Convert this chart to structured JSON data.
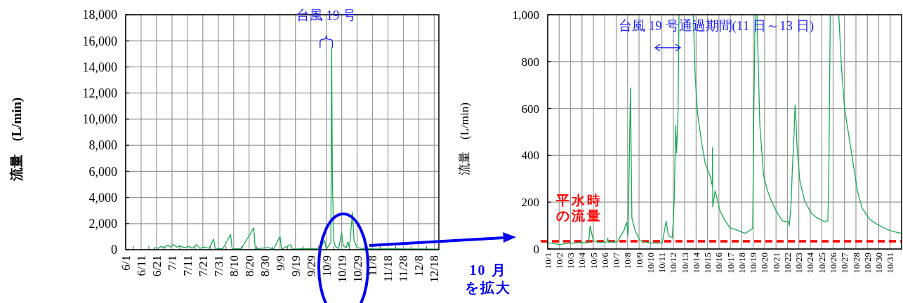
{
  "chart_data": [
    {
      "type": "line",
      "ylabel": "流量　(L/min)",
      "grid": true,
      "xlim": [
        "--06-01",
        "--12-21"
      ],
      "ylim": [
        0,
        18000
      ],
      "yticks": [
        0,
        {
          "value": 2000,
          "label": "2,000"
        },
        {
          "value": 4000,
          "label": "4,000"
        },
        {
          "value": 6000,
          "label": "6,000"
        },
        {
          "value": 8000,
          "label": "8,000"
        },
        {
          "value": 10000,
          "label": "10,000"
        },
        {
          "value": 12000,
          "label": "12,000"
        },
        {
          "value": 14000,
          "label": "14,000"
        },
        {
          "value": 16000,
          "label": "16,000"
        },
        {
          "value": 18000,
          "label": "18,000"
        }
      ],
      "xticks": [
        {
          "value": "--06-01",
          "label": "6/1"
        },
        {
          "value": "--06-06",
          "label": null
        },
        {
          "value": "--06-11",
          "label": "6/11"
        },
        {
          "value": "--06-16",
          "label": null
        },
        {
          "value": "--06-21",
          "label": "6/21"
        },
        {
          "value": "--06-26",
          "label": null
        },
        {
          "value": "--07-01",
          "label": "7/1"
        },
        {
          "value": "--07-06",
          "label": null
        },
        {
          "value": "--07-11",
          "label": "7/11"
        },
        {
          "value": "--07-16",
          "label": null
        },
        {
          "value": "--07-21",
          "label": "7/21"
        },
        {
          "value": "--07-26",
          "label": null
        },
        {
          "value": "--07-31",
          "label": "7/31"
        },
        {
          "value": "--08-05",
          "label": null
        },
        {
          "value": "--08-10",
          "label": "8/10"
        },
        {
          "value": "--08-15",
          "label": null
        },
        {
          "value": "--08-20",
          "label": "8/20"
        },
        {
          "value": "--08-25",
          "label": null
        },
        {
          "value": "--08-30",
          "label": "8/30"
        },
        {
          "value": "--09-04",
          "label": null
        },
        {
          "value": "--09-09",
          "label": "9/9"
        },
        {
          "value": "--09-14",
          "label": null
        },
        {
          "value": "--09-19",
          "label": "9/19"
        },
        {
          "value": "--09-24",
          "label": null
        },
        {
          "value": "--09-29",
          "label": "9/29"
        },
        {
          "value": "--10-04",
          "label": null
        },
        {
          "value": "--10-09",
          "label": "10/9"
        },
        {
          "value": "--10-14",
          "label": null
        },
        {
          "value": "--10-19",
          "label": "10/19"
        },
        {
          "value": "--10-24",
          "label": null
        },
        {
          "value": "--10-29",
          "label": "10/29"
        },
        {
          "value": "--11-03",
          "label": null
        },
        {
          "value": "--11-08",
          "label": "11/8"
        },
        {
          "value": "--11-13",
          "label": null
        },
        {
          "value": "--11-18",
          "label": "11/18"
        },
        {
          "value": "--11-23",
          "label": null
        },
        {
          "value": "--11-28",
          "label": "11/28"
        },
        {
          "value": "--12-03",
          "label": null
        },
        {
          "value": "--12-08",
          "label": "12/8"
        },
        {
          "value": "--12-13",
          "label": null
        },
        {
          "value": "--12-18",
          "label": "12/18"
        }
      ],
      "x": [
        "--06-19",
        "--06-20",
        "--06-22",
        "--06-24",
        "--06-26",
        "--06-28",
        "--06-30",
        "--07-02",
        "--07-04",
        "--07-06",
        "--07-09",
        "--07-12",
        "--07-14",
        "--07-17",
        "--07-19",
        "--07-22",
        "--07-25",
        "--07-28",
        "--07-29",
        "--08-03",
        "--08-08",
        "--08-09",
        "--08-15",
        "--08-23",
        "--08-24",
        "--09-01",
        "--09-05",
        "--09-09",
        "--09-10",
        "--09-16",
        "--09-17",
        "--09-25",
        "--10-05",
        "--10-08",
        "--10-09",
        "--10-12T00:00",
        "--10-12T12:00",
        "--10-13T00:00",
        "--10-14",
        "--10-15",
        "--10-17",
        "--10-19",
        "--10-20",
        "--10-22",
        "--10-23",
        "--10-24",
        "--10-26",
        "--10-27",
        "--10-29",
        "--11-02",
        "--11-10",
        "--11-20",
        "--12-01",
        "--12-10",
        "--12-21"
      ],
      "series": [
        {
          "color": "#1aaa55",
          "values": [
            0,
            150,
            100,
            250,
            150,
            350,
            200,
            400,
            200,
            300,
            150,
            250,
            100,
            400,
            100,
            200,
            100,
            800,
            100,
            80,
            1180,
            60,
            80,
            1670,
            60,
            150,
            60,
            1000,
            50,
            380,
            50,
            80,
            100,
            690,
            40,
            550,
            15500,
            5000,
            600,
            250,
            80,
            1300,
            300,
            150,
            600,
            150,
            2850,
            700,
            150,
            80,
            60,
            70,
            60,
            60,
            50
          ]
        }
      ],
      "annotations": [
        {
          "text": "台風 19 号",
          "x": "--10-09",
          "y": 16000
        },
        "10 月",
        "を拡大"
      ]
    },
    {
      "type": "line",
      "ylabel": "流量　(L/min)",
      "grid": true,
      "xlim": [
        "--10-01",
        "--11-01"
      ],
      "ylim": [
        0,
        1000
      ],
      "yticks": [
        0,
        200,
        400,
        600,
        800,
        {
          "value": 1000,
          "label": "1,000"
        }
      ],
      "xticks": [
        {
          "value": "--10-01",
          "label": "10/1"
        },
        {
          "value": "--10-02",
          "label": "10/2"
        },
        {
          "value": "--10-03",
          "label": "10/3"
        },
        {
          "value": "--10-04",
          "label": "10/4"
        },
        {
          "value": "--10-05",
          "label": "10/5"
        },
        {
          "value": "--10-06",
          "label": "10/6"
        },
        {
          "value": "--10-07",
          "label": "10/7"
        },
        {
          "value": "--10-08",
          "label": "10/8"
        },
        {
          "value": "--10-09",
          "label": "10/9"
        },
        {
          "value": "--10-10",
          "label": "10/10"
        },
        {
          "value": "--10-11",
          "label": "10/11"
        },
        {
          "value": "--10-12",
          "label": "10/12"
        },
        {
          "value": "--10-13",
          "label": "10/13"
        },
        {
          "value": "--10-14",
          "label": "10/14"
        },
        {
          "value": "--10-15",
          "label": "10/15"
        },
        {
          "value": "--10-16",
          "label": "10/16"
        },
        {
          "value": "--10-17",
          "label": "10/17"
        },
        {
          "value": "--10-18",
          "label": "10/18"
        },
        {
          "value": "--10-19",
          "label": "10/19"
        },
        {
          "value": "--10-20",
          "label": "10/20"
        },
        {
          "value": "--10-21",
          "label": "10/21"
        },
        {
          "value": "--10-22",
          "label": "10/22"
        },
        {
          "value": "--10-23",
          "label": "10/23"
        },
        {
          "value": "--10-24",
          "label": "10/24"
        },
        {
          "value": "--10-25",
          "label": "10/25"
        },
        {
          "value": "--10-26",
          "label": "10/26"
        },
        {
          "value": "--10-27",
          "label": "10/27"
        },
        {
          "value": "--10-28",
          "label": "10/28"
        },
        {
          "value": "--10-29",
          "label": "10/29"
        },
        {
          "value": "--10-30",
          "label": "10/30"
        },
        {
          "value": "--10-31",
          "label": "10/31"
        }
      ],
      "x": [
        "--10-01T00:00",
        "--10-02T00:00",
        "--10-03T00:00",
        "--10-04T00:00",
        "--10-04T14:00",
        "--10-04T17:00",
        "--10-05T00:00",
        "--10-05T12:00",
        "--10-06T05:00",
        "--10-06T06:00",
        "--10-06T08:00",
        "--10-07T02:00",
        "--10-07T16:00",
        "--10-07T22:00",
        "--10-08T01:00",
        "--10-08T06:00",
        "--10-08T09:00",
        "--10-08T16:00",
        "--10-09T02:00",
        "--10-09T18:00",
        "--10-10T12:00",
        "--10-11T01:00",
        "--10-11T04:00",
        "--10-11T09:00",
        "--10-11T14:00",
        "--10-11T22:00",
        "--10-12T02:00",
        "--10-12T05:00",
        "--10-12T07:00",
        "--10-12T10:00",
        "--10-12T12:00",
        "--10-12T18:00",
        "--10-13T18:00",
        "--10-13T22:00",
        "--10-14T03:00",
        "--10-14T11:00",
        "--10-14T19:00",
        "--10-15T05:00",
        "--10-15T10:00",
        "--10-15T10:30",
        "--10-15T11:00",
        "--10-15T16:00",
        "--10-16T02:00",
        "--10-16T13:00",
        "--10-16T23:00",
        "--10-17T15:00",
        "--10-18T07:00",
        "--10-18T20:00",
        "--10-18T23:00",
        "--10-19T01:00",
        "--10-19T04:00",
        "--10-19T06:00",
        "--10-19T08:00",
        "--10-19T14:00",
        "--10-19T22:00",
        "--10-20T06:00",
        "--10-20T16:00",
        "--10-21T03:00",
        "--10-21T13:00",
        "--10-22T02:00",
        "--10-22T04:00",
        "--10-22T08:00",
        "--10-22T10:00",
        "--10-22T14:00",
        "--10-22T16:00",
        "--10-22T18:00",
        "--10-22T20:00",
        "--10-23T02:00",
        "--10-23T12:00",
        "--10-24T02:00",
        "--10-24T15:00",
        "--10-25T06:00",
        "--10-25T13:00",
        "--10-25T15:00",
        "--10-25T18:00",
        "--10-26T00:00",
        "--10-26T12:00",
        "--10-26T17:00",
        "--10-27T00:00",
        "--10-27T14:00",
        "--10-28T03:00",
        "--10-28T13:00",
        "--10-29T05:00",
        "--10-29T21:00",
        "--10-30T18:00",
        "--10-31T10:00",
        "--11-01T00:00"
      ],
      "series": [
        {
          "color": "#1aaa55",
          "values": [
            27,
            19,
            25,
            27,
            27,
            99,
            35,
            28,
            30,
            46,
            30,
            30,
            78,
            115,
            57,
            688,
            131,
            78,
            35,
            27,
            25,
            27,
            62,
            119,
            57,
            48,
            206,
            527,
            410,
            581,
            1000,
            null,
            1000,
            741,
            581,
            463,
            367,
            313,
            271,
            433,
            180,
            249,
            164,
            121,
            91,
            80,
            67,
            83,
            89,
            527,
            1000,
            null,
            1000,
            527,
            313,
            249,
            196,
            153,
            121,
            116,
            99,
            206,
            324,
            495,
            613,
            549,
            442,
            292,
            206,
            153,
            132,
            116,
            121,
            313,
            1000,
            null,
            1000,
            795,
            602,
            420,
            249,
            174,
            126,
            105,
            83,
            73,
            67
          ]
        }
      ],
      "ref_lines": [
        {
          "axis": "y",
          "value": 33,
          "label": "平水時の流量",
          "color": "#ff0000",
          "line_style": "dashed"
        }
      ],
      "annotations": [
        "台風 19 号通過期間(11 日～13 日)"
      ]
    }
  ]
}
